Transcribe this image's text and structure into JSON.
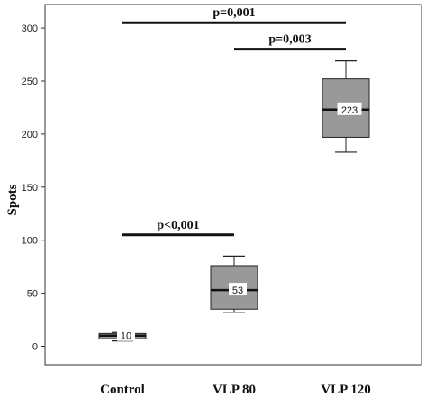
{
  "chart_data": {
    "type": "box",
    "title": "",
    "xlabel": "",
    "ylabel": "Spots",
    "ylim": [
      -18,
      310
    ],
    "yticks": [
      0,
      50,
      100,
      150,
      200,
      250,
      300
    ],
    "grid": false,
    "categories": [
      "Control",
      "VLP 80",
      "VLP 120"
    ],
    "boxes": [
      {
        "category": "Control",
        "min": 5,
        "q1": 7,
        "median": 10,
        "q3": 12,
        "max": 13,
        "median_label": "10"
      },
      {
        "category": "VLP 80",
        "min": 32,
        "q1": 35,
        "median": 53,
        "q3": 76,
        "max": 85,
        "median_label": "53"
      },
      {
        "category": "VLP 120",
        "min": 183,
        "q1": 197,
        "median": 223,
        "q3": 252,
        "max": 269,
        "median_label": "223"
      }
    ],
    "significance": [
      {
        "from": "Control",
        "to": "VLP 80",
        "y": 105,
        "label": "p<0,001"
      },
      {
        "from": "VLP 80",
        "to": "VLP 120",
        "y": 280,
        "label": "p=0,003"
      },
      {
        "from": "Control",
        "to": "VLP 120",
        "y": 305,
        "label": "p=0,001"
      }
    ],
    "colors": {
      "box_fill": "#999999",
      "median_line": "#111111",
      "axis": "#333333"
    }
  }
}
